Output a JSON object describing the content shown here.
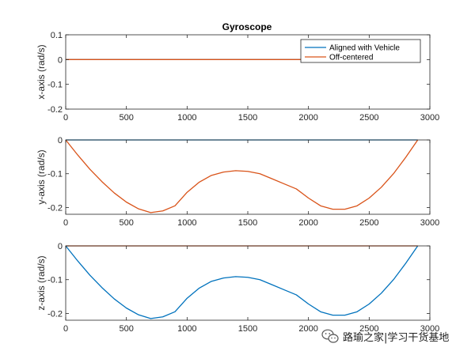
{
  "chart_data": {
    "type": "line",
    "title": "Gyroscope",
    "legend": {
      "placement": "top-right",
      "entries": [
        "Aligned with Vehicle",
        "Off-centered"
      ]
    },
    "colors": {
      "aligned": "#0072BD",
      "offcentered": "#D95319"
    },
    "subplots": [
      {
        "ylabel": "x-axis (rad/s)",
        "xlim": [
          0,
          3000
        ],
        "ylim": [
          -0.2,
          0.1
        ],
        "xticks": [
          0,
          500,
          1000,
          1500,
          2000,
          2500,
          3000
        ],
        "yticks": [
          0.1,
          0,
          -0.1,
          -0.2
        ],
        "ytick_labels": [
          "0.1",
          "0",
          "-0.1",
          "-0.2"
        ],
        "series": [
          {
            "name": "Aligned with Vehicle",
            "x": [
              0,
              2900
            ],
            "y": [
              0,
              0
            ]
          },
          {
            "name": "Off-centered",
            "x": [
              0,
              2900
            ],
            "y": [
              0,
              0
            ]
          }
        ]
      },
      {
        "ylabel": "y-axis (rad/s)",
        "xlim": [
          0,
          3000
        ],
        "ylim": [
          -0.22,
          0
        ],
        "xticks": [
          0,
          500,
          1000,
          1500,
          2000,
          2500,
          3000
        ],
        "yticks": [
          0,
          -0.1,
          -0.2
        ],
        "ytick_labels": [
          "0",
          "-0.1",
          "-0.2"
        ],
        "series": [
          {
            "name": "Aligned with Vehicle",
            "x": [
              0,
              2900
            ],
            "y": [
              0,
              0
            ]
          },
          {
            "name": "Off-centered",
            "x": [
              0,
              100,
              200,
              300,
              400,
              500,
              600,
              700,
              800,
              900,
              1000,
              1100,
              1200,
              1300,
              1400,
              1500,
              1600,
              1700,
              1800,
              1900,
              2000,
              2100,
              2200,
              2300,
              2400,
              2500,
              2600,
              2700,
              2800,
              2900
            ],
            "y": [
              0,
              -0.045,
              -0.087,
              -0.124,
              -0.157,
              -0.184,
              -0.204,
              -0.215,
              -0.21,
              -0.195,
              -0.155,
              -0.125,
              -0.105,
              -0.095,
              -0.091,
              -0.093,
              -0.1,
              -0.115,
              -0.13,
              -0.145,
              -0.172,
              -0.195,
              -0.205,
              -0.205,
              -0.195,
              -0.172,
              -0.14,
              -0.1,
              -0.052,
              0
            ]
          }
        ]
      },
      {
        "ylabel": "z-axis (rad/s)",
        "xlim": [
          0,
          3000
        ],
        "ylim": [
          -0.22,
          0
        ],
        "xticks": [
          0,
          500,
          1000,
          1500,
          2000,
          2500,
          3000
        ],
        "yticks": [
          0,
          -0.1,
          -0.2
        ],
        "ytick_labels": [
          "0",
          "-0.1",
          "-0.2"
        ],
        "series": [
          {
            "name": "Aligned with Vehicle",
            "x": [
              0,
              100,
              200,
              300,
              400,
              500,
              600,
              700,
              800,
              900,
              1000,
              1100,
              1200,
              1300,
              1400,
              1500,
              1600,
              1700,
              1800,
              1900,
              2000,
              2100,
              2200,
              2300,
              2400,
              2500,
              2600,
              2700,
              2800,
              2900
            ],
            "y": [
              0,
              -0.045,
              -0.087,
              -0.124,
              -0.157,
              -0.184,
              -0.204,
              -0.215,
              -0.21,
              -0.195,
              -0.155,
              -0.125,
              -0.105,
              -0.095,
              -0.091,
              -0.093,
              -0.1,
              -0.115,
              -0.13,
              -0.145,
              -0.172,
              -0.195,
              -0.205,
              -0.205,
              -0.195,
              -0.172,
              -0.14,
              -0.1,
              -0.052,
              0
            ]
          },
          {
            "name": "Off-centered",
            "x": [
              0,
              2900
            ],
            "y": [
              0,
              0
            ]
          }
        ]
      }
    ]
  },
  "watermark": {
    "text": "路瑜之家|学习干货基地",
    "icon": "wechat-icon"
  }
}
